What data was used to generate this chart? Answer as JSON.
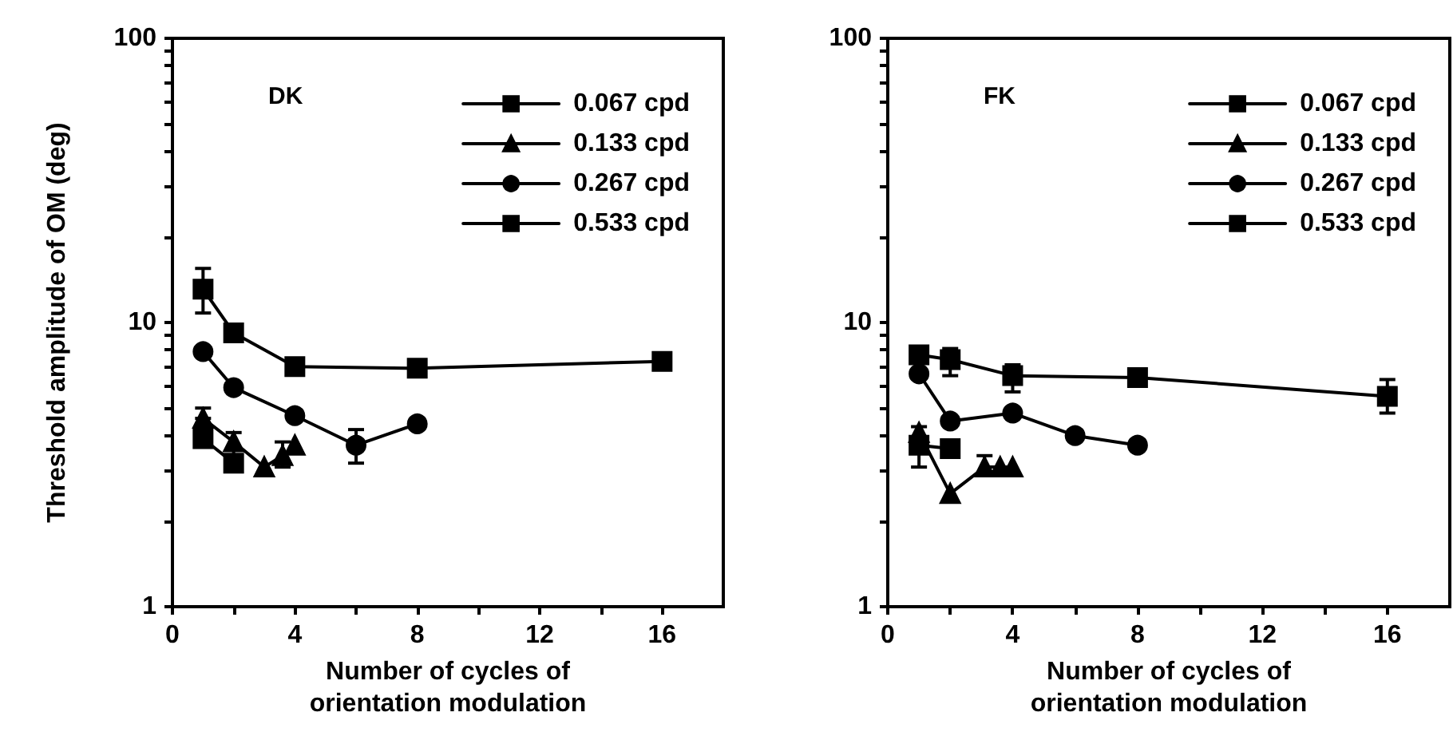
{
  "chart_data": [
    {
      "type": "line",
      "title": "DK",
      "xlabel": "Number of cycles of\norientation modulation",
      "ylabel": "Threshold amplitude of OM (deg)",
      "log": "y",
      "xlim": [
        0,
        18
      ],
      "xticks": [
        0,
        {
          "value": 2,
          "label": null
        },
        4,
        {
          "value": 6,
          "label": null
        },
        8,
        {
          "value": 10,
          "label": null
        },
        12,
        {
          "value": 14,
          "label": null
        },
        16
      ],
      "ylim": [
        1,
        100
      ],
      "yticks": [
        1,
        {
          "value": 2,
          "label": null
        },
        {
          "value": 3,
          "label": null
        },
        {
          "value": 4,
          "label": null
        },
        {
          "value": 5,
          "label": null
        },
        {
          "value": 6,
          "label": null
        },
        {
          "value": 7,
          "label": null
        },
        {
          "value": 8,
          "label": null
        },
        {
          "value": 9,
          "label": null
        },
        10,
        {
          "value": 20,
          "label": null
        },
        {
          "value": 30,
          "label": null
        },
        {
          "value": 40,
          "label": null
        },
        {
          "value": 50,
          "label": null
        },
        {
          "value": 60,
          "label": null
        },
        {
          "value": 70,
          "label": null
        },
        {
          "value": 80,
          "label": null
        },
        {
          "value": 90,
          "label": null
        },
        100
      ],
      "grid": false,
      "legend": "top right",
      "line_style": "solid",
      "series": [
        {
          "name": "0.067 cpd",
          "color": "#000000",
          "marker": "square",
          "x": [
            1,
            2
          ],
          "values": [
            3.9,
            3.2
          ],
          "errors": [
            null,
            null
          ]
        },
        {
          "name": "0.133 cpd",
          "color": "#000000",
          "marker": "triangle",
          "x": [
            1,
            2,
            3,
            3.6,
            4
          ],
          "values": [
            4.6,
            3.8,
            3.1,
            3.4,
            3.7
          ],
          "errors": [
            [
              4.6,
              5.0
            ],
            [
              3.4,
              4.1
            ],
            null,
            [
              3.1,
              3.8
            ],
            null
          ]
        },
        {
          "name": "0.267 cpd",
          "color": "#000000",
          "marker": "circle",
          "x": [
            1,
            2,
            4,
            6,
            8
          ],
          "values": [
            7.9,
            5.9,
            4.7,
            3.7,
            4.4
          ],
          "errors": [
            null,
            null,
            null,
            [
              3.2,
              4.2
            ],
            null
          ]
        },
        {
          "name": "0.533 cpd",
          "color": "#000000",
          "marker": "square",
          "x": [
            1,
            2,
            4,
            8,
            16
          ],
          "values": [
            13.1,
            9.2,
            7.0,
            6.9,
            7.3
          ],
          "errors": [
            [
              10.8,
              15.5
            ],
            [
              8.6,
              9.8
            ],
            null,
            null,
            null
          ]
        }
      ]
    },
    {
      "type": "line",
      "title": "FK",
      "xlabel": "Number of cycles of\norientation modulation",
      "log": "y",
      "xlim": [
        0,
        18
      ],
      "xticks": [
        0,
        {
          "value": 2,
          "label": null
        },
        4,
        {
          "value": 6,
          "label": null
        },
        8,
        {
          "value": 10,
          "label": null
        },
        12,
        {
          "value": 14,
          "label": null
        },
        16
      ],
      "ylim": [
        1,
        100
      ],
      "yticks": [
        1,
        {
          "value": 2,
          "label": null
        },
        {
          "value": 3,
          "label": null
        },
        {
          "value": 4,
          "label": null
        },
        {
          "value": 5,
          "label": null
        },
        {
          "value": 6,
          "label": null
        },
        {
          "value": 7,
          "label": null
        },
        {
          "value": 8,
          "label": null
        },
        {
          "value": 9,
          "label": null
        },
        10,
        {
          "value": 20,
          "label": null
        },
        {
          "value": 30,
          "label": null
        },
        {
          "value": 40,
          "label": null
        },
        {
          "value": 50,
          "label": null
        },
        {
          "value": 60,
          "label": null
        },
        {
          "value": 70,
          "label": null
        },
        {
          "value": 80,
          "label": null
        },
        {
          "value": 90,
          "label": null
        },
        100
      ],
      "grid": false,
      "legend": "top right",
      "line_style": "solid",
      "series": [
        {
          "name": "0.067 cpd",
          "color": "#000000",
          "marker": "square",
          "x": [
            1,
            2
          ],
          "values": [
            3.7,
            3.6
          ],
          "errors": [
            [
              3.1,
              4.3
            ],
            null
          ]
        },
        {
          "name": "0.133 cpd",
          "color": "#000000",
          "marker": "triangle",
          "x": [
            1,
            2,
            3.1,
            3.6,
            4
          ],
          "values": [
            4.1,
            2.5,
            3.1,
            3.1,
            3.1
          ],
          "errors": [
            null,
            null,
            [
              2.9,
              3.4
            ],
            null,
            null
          ]
        },
        {
          "name": "0.267 cpd",
          "color": "#000000",
          "marker": "circle",
          "x": [
            1,
            2,
            4,
            6,
            8
          ],
          "values": [
            6.6,
            4.5,
            4.8,
            4.0,
            3.7
          ],
          "errors": [
            null,
            null,
            null,
            null,
            null
          ]
        },
        {
          "name": "0.533 cpd",
          "color": "#000000",
          "marker": "square",
          "x": [
            1,
            2,
            4,
            8,
            16
          ],
          "values": [
            7.7,
            7.4,
            6.5,
            6.4,
            5.5
          ],
          "errors": [
            null,
            [
              6.5,
              8.1
            ],
            [
              5.7,
              7.1
            ],
            null,
            [
              4.8,
              6.3
            ]
          ]
        }
      ]
    }
  ]
}
